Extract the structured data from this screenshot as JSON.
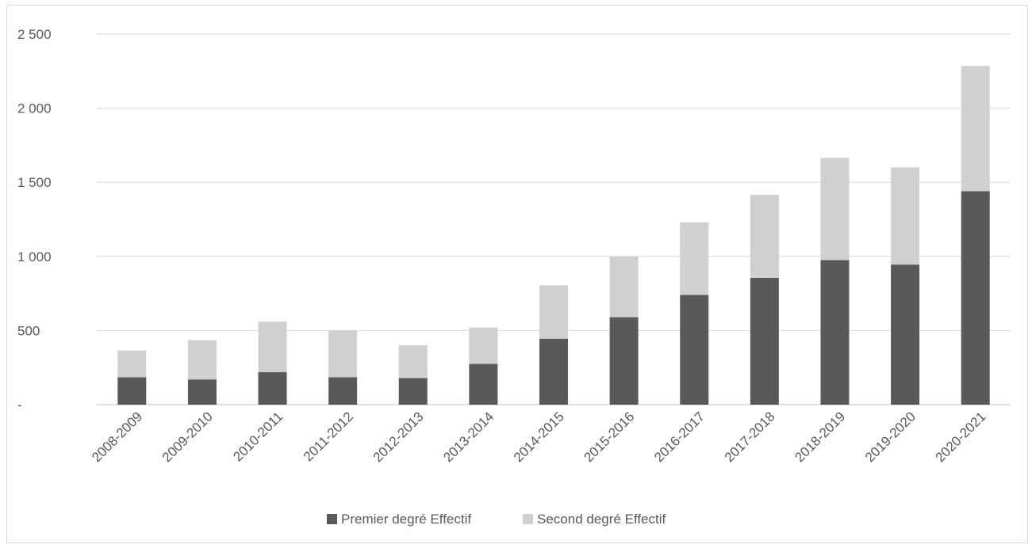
{
  "chart_data": {
    "type": "bar",
    "stacked": true,
    "title": "",
    "xlabel": "",
    "ylabel": "",
    "categories": [
      "2008-2009",
      "2009-2010",
      "2010-2011",
      "2011-2012",
      "2012-2013",
      "2013-2014",
      "2014-2015",
      "2015-2016",
      "2016-2017",
      "2017-2018",
      "2018-2019",
      "2019-2020",
      "2020-2021"
    ],
    "series": [
      {
        "name": "Premier degré Effectif",
        "color": "#595959",
        "values": [
          185,
          170,
          220,
          185,
          180,
          275,
          445,
          590,
          740,
          855,
          975,
          945,
          1440
        ]
      },
      {
        "name": "Second degré Effectif",
        "color": "#d0d0d0",
        "values": [
          180,
          265,
          340,
          315,
          220,
          245,
          360,
          410,
          490,
          560,
          690,
          655,
          845
        ]
      }
    ],
    "ylim": [
      0,
      2500
    ],
    "yticks": [
      0,
      500,
      1000,
      1500,
      2000,
      2500
    ],
    "ytick_labels": [
      "-",
      "500",
      "1 000",
      "1 500",
      "2 000",
      "2 500"
    ],
    "grid": true,
    "legend_position": "bottom"
  }
}
